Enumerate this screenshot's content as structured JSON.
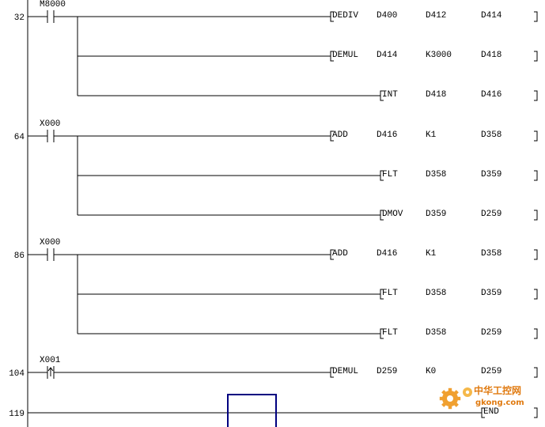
{
  "rungs": [
    {
      "step": "32",
      "contact": {
        "device": "M8000",
        "type": "normally-open"
      },
      "instructions": [
        {
          "op": "DEDIV",
          "operands": [
            "D400",
            "D412",
            "D414"
          ]
        },
        {
          "op": "DEMUL",
          "operands": [
            "D414",
            "K3000",
            "D418"
          ]
        },
        {
          "op": "INT",
          "operands": [
            "D418",
            "D416"
          ]
        }
      ]
    },
    {
      "step": "64",
      "contact": {
        "device": "X000",
        "type": "normally-open"
      },
      "instructions": [
        {
          "op": "ADD",
          "operands": [
            "D416",
            "K1",
            "D358"
          ]
        },
        {
          "op": "FLT",
          "operands": [
            "D358",
            "D359"
          ]
        },
        {
          "op": "DMOV",
          "operands": [
            "D359",
            "D259"
          ]
        }
      ]
    },
    {
      "step": "86",
      "contact": {
        "device": "X000",
        "type": "normally-open"
      },
      "instructions": [
        {
          "op": "ADD",
          "operands": [
            "D416",
            "K1",
            "D358"
          ]
        },
        {
          "op": "FLT",
          "operands": [
            "D358",
            "D359"
          ]
        },
        {
          "op": "FLT",
          "operands": [
            "D358",
            "D259"
          ]
        }
      ]
    },
    {
      "step": "104",
      "contact": {
        "device": "X001",
        "type": "rising-edge"
      },
      "instructions": [
        {
          "op": "DEMUL",
          "operands": [
            "D259",
            "K0",
            "D259"
          ]
        }
      ]
    },
    {
      "step": "119",
      "contact": null,
      "instructions": [
        {
          "op": "END",
          "operands": []
        }
      ]
    }
  ],
  "watermark": {
    "line1": "中华工控网",
    "line2": "gkong.com",
    "color": "#e07a10",
    "icon": "gear-icon"
  },
  "colors": {
    "wire": "#000000",
    "cursor": "#000080"
  }
}
